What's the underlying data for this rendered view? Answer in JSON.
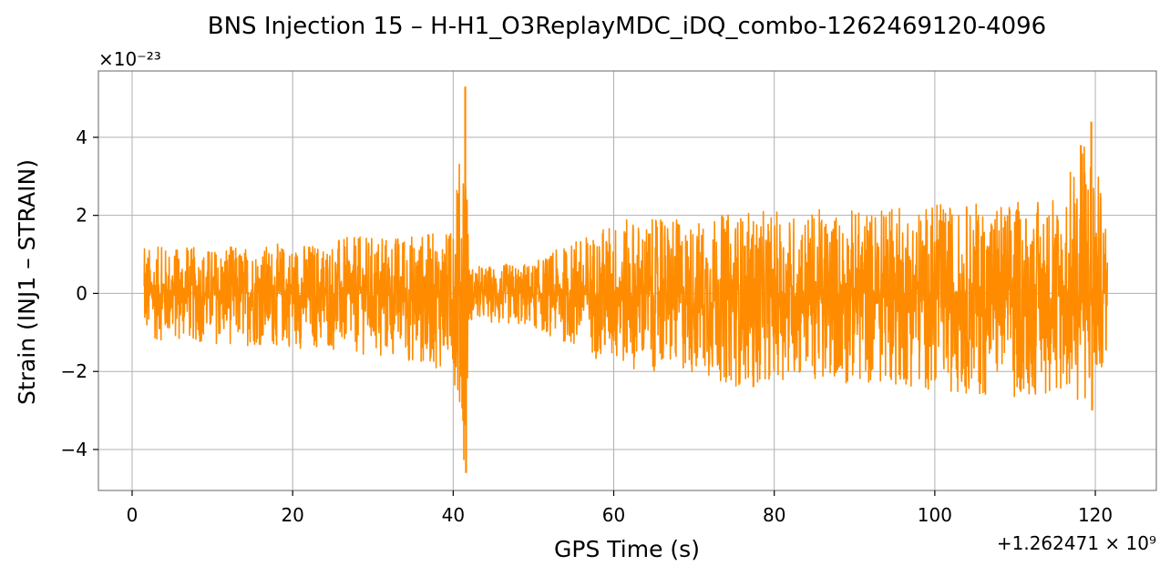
{
  "chart_data": {
    "type": "line",
    "title": "BNS Injection 15 – H-H1_O3ReplayMDC_iDQ_combo-1262469120-4096",
    "xlabel": "GPS Time (s)",
    "ylabel": "Strain (INJ1 – STRAIN)",
    "x_offset_label": "+1.262471 × 10⁹",
    "y_scale_label": "×10⁻²³",
    "xlim": [
      -4.2,
      127.6
    ],
    "ylim": [
      -5.05,
      5.7
    ],
    "x_ticks": [
      0,
      20,
      40,
      60,
      80,
      100,
      120
    ],
    "x_tick_labels": [
      "0",
      "20",
      "40",
      "60",
      "80",
      "100",
      "120"
    ],
    "y_ticks": [
      -4,
      -2,
      0,
      2,
      4
    ],
    "y_tick_labels": [
      "−4",
      "−2",
      "0",
      "2",
      "4"
    ],
    "grid": true,
    "series": [
      {
        "color": "#ff8c00",
        "x_range": [
          1.5,
          121.5
        ],
        "envelope_x": [
          1.5,
          10,
          20,
          30,
          40,
          41.5,
          42,
          50,
          60,
          70,
          75,
          80,
          90,
          100,
          110,
          115,
          119.5,
          121.5
        ],
        "envelope_upper": [
          1.2,
          1.2,
          1.3,
          1.5,
          1.6,
          5.3,
          0.7,
          0.8,
          1.9,
          1.9,
          2.1,
          2.1,
          2.2,
          2.3,
          2.4,
          2.4,
          4.4,
          1.4
        ],
        "envelope_lower": [
          -1.2,
          -1.3,
          -1.4,
          -1.6,
          -2.0,
          -4.6,
          -0.7,
          -0.9,
          -1.9,
          -2.1,
          -2.4,
          -2.2,
          -2.3,
          -2.5,
          -2.7,
          -2.6,
          -3.0,
          -1.5
        ]
      }
    ]
  }
}
